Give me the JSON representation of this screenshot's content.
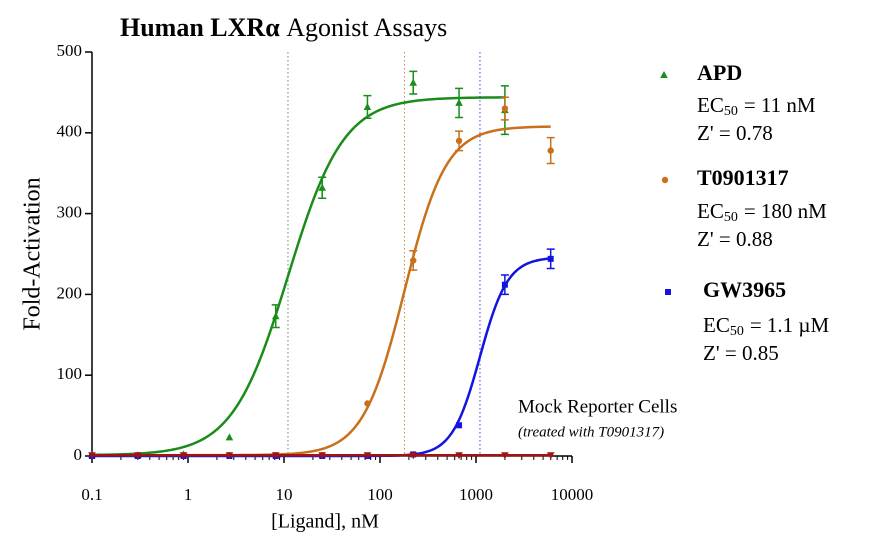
{
  "chart_data": {
    "type": "scatter",
    "title_bold": "Human LXRα",
    "title": "Agonist Assays",
    "x_label": "[Ligand], nM",
    "y_label": "Fold-Activation",
    "log_x": true,
    "xlim": [
      0.1,
      10000
    ],
    "xticks": [
      0.1,
      1,
      10,
      100,
      1000,
      10000
    ],
    "ylim": [
      0,
      500
    ],
    "yticks": [
      0,
      100,
      200,
      300,
      400,
      500
    ],
    "series": [
      {
        "name": "APD",
        "color": "#1a8c1a",
        "marker": "triangle",
        "x": [
          0.1,
          0.3,
          0.9,
          2.7,
          8.2,
          25,
          74,
          222,
          666,
          2000
        ],
        "values": [
          1,
          1,
          2,
          23,
          173,
          332,
          432,
          462,
          437,
          428
        ],
        "errors": [
          null,
          null,
          null,
          null,
          14,
          13,
          14,
          14,
          18,
          30
        ],
        "ec_label": "EC",
        "ec_sub": "50",
        "ec_value": "= 11 nM",
        "z": "Z' = 0.78",
        "fit": {
          "bottom": 1,
          "top": 444,
          "ec50": 11,
          "hill": 1.5
        }
      },
      {
        "name": "T0901317",
        "color": "#c8701a",
        "marker": "circle",
        "x": [
          0.1,
          0.3,
          0.9,
          2.7,
          8.2,
          25,
          74,
          222,
          666,
          2000,
          6000
        ],
        "values": [
          1,
          1,
          1,
          1,
          1,
          1,
          65,
          242,
          390,
          430,
          378
        ],
        "errors": [
          null,
          null,
          null,
          null,
          null,
          null,
          null,
          12,
          12,
          14,
          16
        ],
        "ec_label": "EC",
        "ec_sub": "50",
        "ec_value": "= 180 nM",
        "z": "Z' = 0.88",
        "fit": {
          "bottom": 1,
          "top": 408,
          "ec50": 180,
          "hill": 2
        }
      },
      {
        "name": "GW3965",
        "color": "#1414e0",
        "marker": "square",
        "x": [
          0.1,
          0.3,
          0.9,
          2.7,
          8.2,
          25,
          74,
          222,
          666,
          2000,
          6000
        ],
        "values": [
          0,
          0,
          0,
          0,
          0,
          0,
          0,
          2,
          38,
          212,
          244
        ],
        "errors": [
          null,
          null,
          null,
          null,
          null,
          null,
          null,
          null,
          null,
          12,
          12
        ],
        "ec_label": "EC",
        "ec_sub": "50",
        "ec_value": "= 1.1 µM",
        "z": "Z' = 0.85",
        "fit": {
          "bottom": 0,
          "top": 246,
          "ec50": 1100,
          "hill": 3
        }
      },
      {
        "name": "Mock Reporter Cells",
        "note": "(treated with T0901317)",
        "color": "#a01414",
        "marker": "down-triangle",
        "x": [
          0.1,
          0.3,
          0.9,
          2.7,
          8.2,
          25,
          74,
          222,
          666,
          2000,
          6000
        ],
        "values": [
          1,
          1,
          1,
          1,
          1,
          1,
          1,
          1,
          1,
          1,
          1
        ]
      }
    ]
  }
}
